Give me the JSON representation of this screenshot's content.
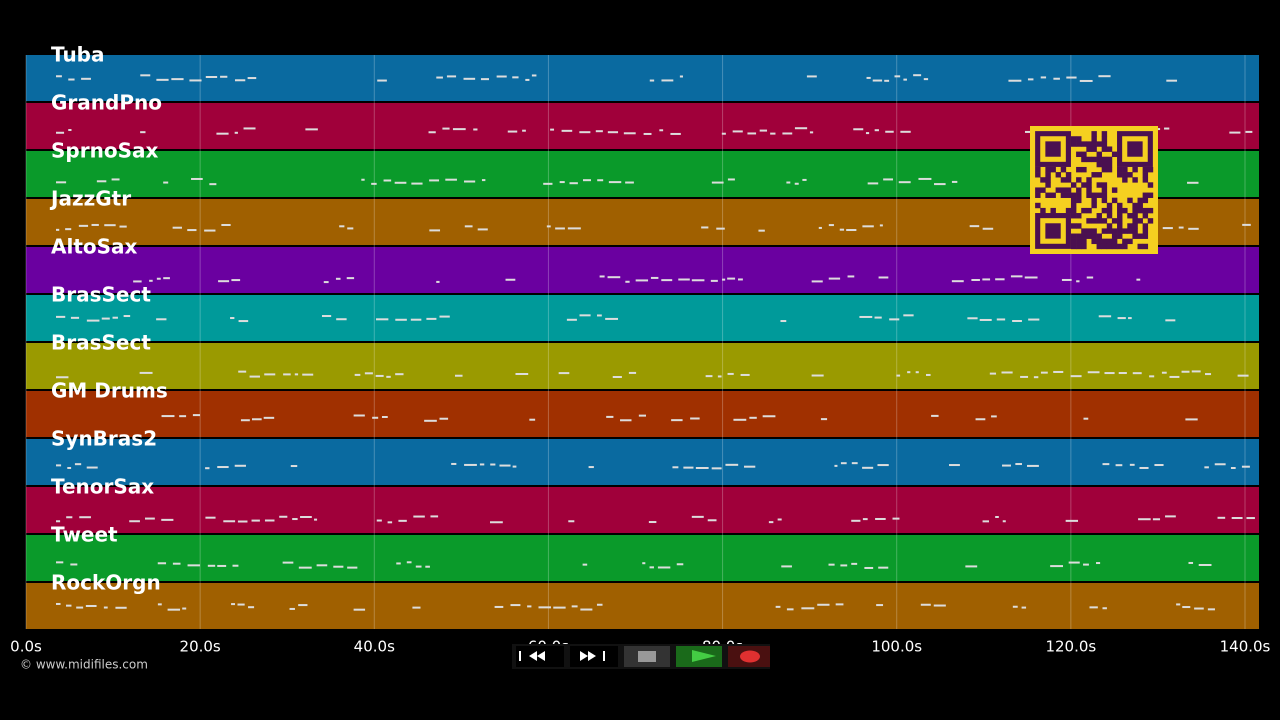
{
  "tracks": [
    {
      "name": "Tuba",
      "color": "#0a6aa0"
    },
    {
      "name": "GrandPno",
      "color": "#a0003a"
    },
    {
      "name": "SprnoSax",
      "color": "#0a9a2a"
    },
    {
      "name": "JazzGtr",
      "color": "#a06000"
    },
    {
      "name": "AltoSax",
      "color": "#6a00a0"
    },
    {
      "name": "BrasSect",
      "color": "#009a9a"
    },
    {
      "name": "BrasSect",
      "color": "#9a9a00"
    },
    {
      "name": "GM Drums",
      "color": "#a03000"
    },
    {
      "name": "SynBras2",
      "color": "#0a6aa0"
    },
    {
      "name": "TenorSax",
      "color": "#a0003a"
    },
    {
      "name": "Tweet",
      "color": "#0a9a2a"
    },
    {
      "name": "RockOrgn",
      "color": "#a06000"
    }
  ],
  "time_axis": {
    "ticks": [
      "0.0s",
      "20.0s",
      "40.0s",
      "60.0s",
      "80.0s",
      "100.0s",
      "120.0s",
      "140.0s"
    ]
  },
  "copyright": "© www.midifiles.com"
}
